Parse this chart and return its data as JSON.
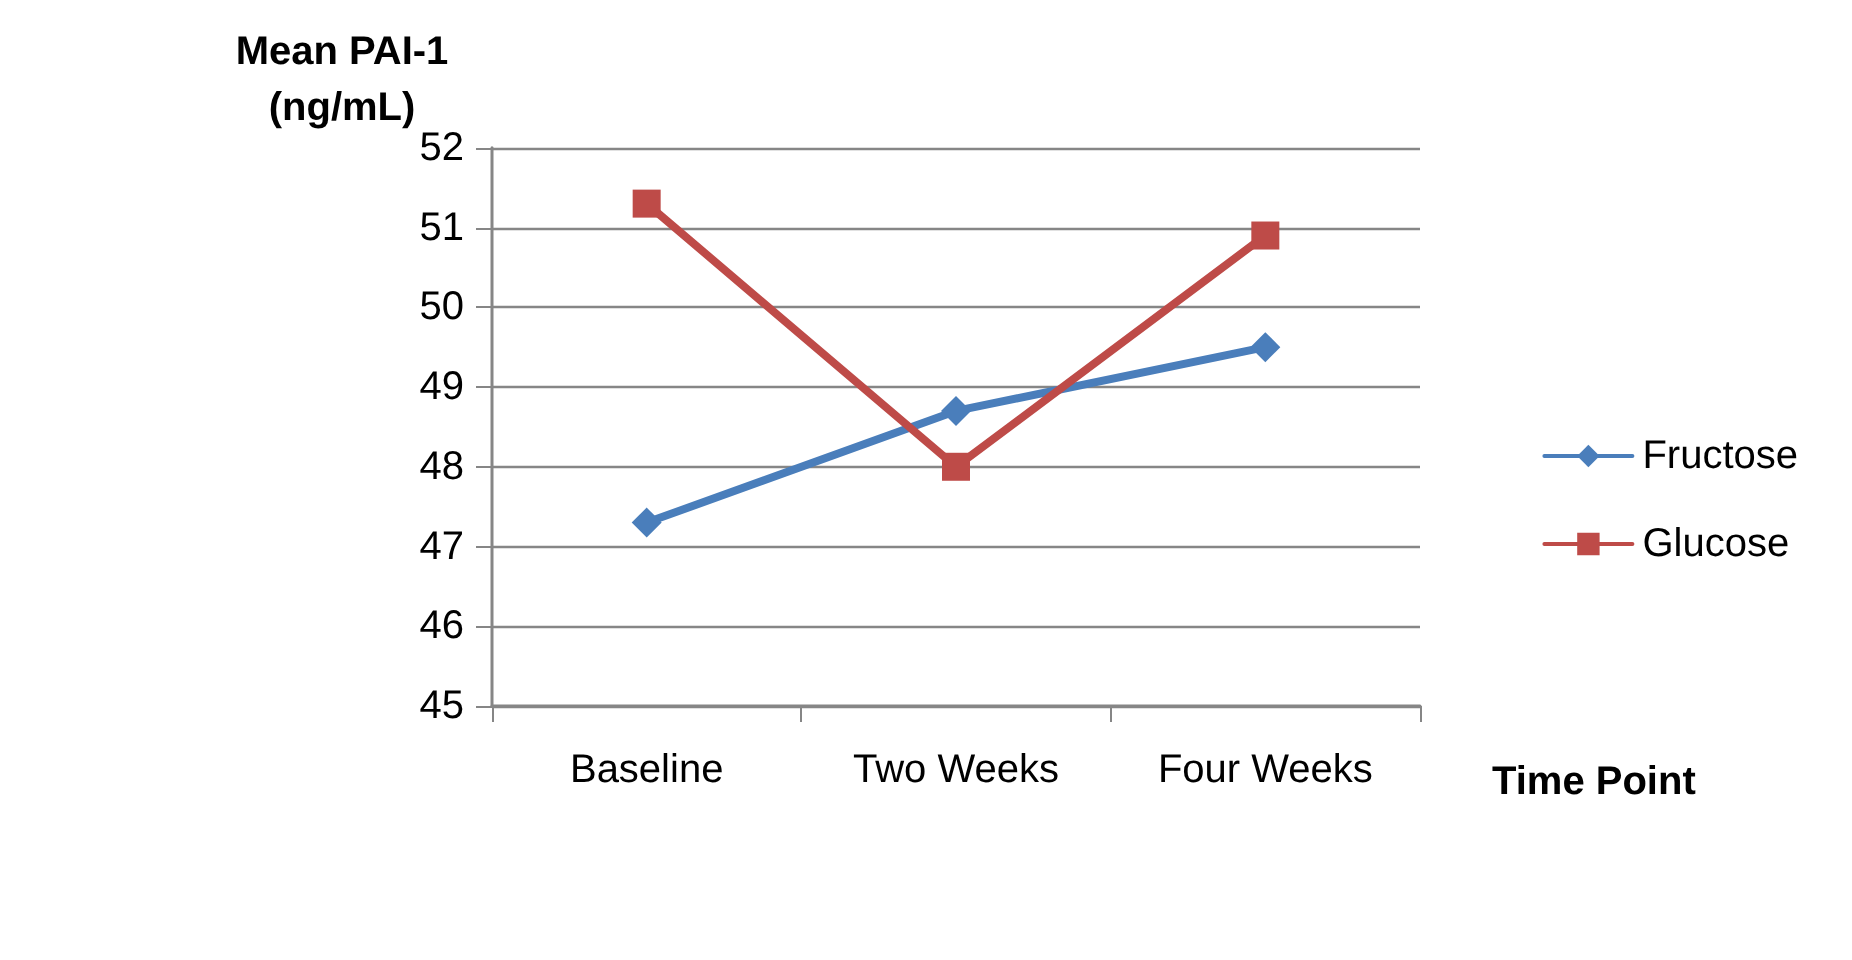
{
  "chart_data": {
    "type": "line",
    "ylabel": "Mean PAI-1\n(ng/mL)",
    "xlabel": "Time Point",
    "categories": [
      "Baseline",
      "Two Weeks",
      "Four Weeks"
    ],
    "series": [
      {
        "name": "Fructose",
        "color": "#4a7ebb",
        "values": [
          47.3,
          48.7,
          49.5
        ],
        "marker": "diamond"
      },
      {
        "name": "Glucose",
        "color": "#be4b48",
        "values": [
          51.3,
          48.0,
          50.9
        ],
        "marker": "square"
      }
    ],
    "ylim": [
      45,
      52
    ],
    "yticks": [
      45,
      46,
      47,
      48,
      49,
      50,
      51,
      52
    ],
    "grid": "y",
    "legend": "right",
    "line_style": "solid"
  }
}
